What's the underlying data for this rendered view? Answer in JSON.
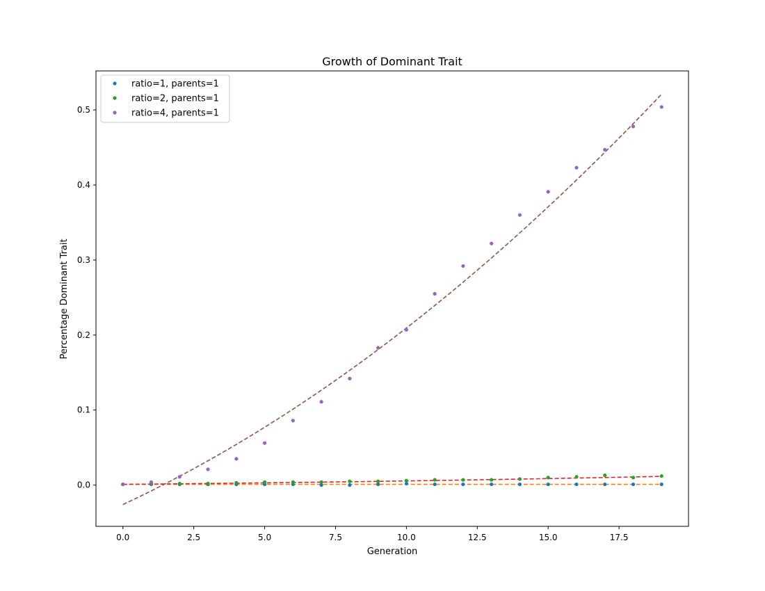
{
  "chart_data": {
    "type": "scatter",
    "title": "Growth of Dominant Trait",
    "xlabel": "Generation",
    "ylabel": "Percentage Dominant Trait",
    "xlim": [
      -0.95,
      19.95
    ],
    "ylim": [
      -0.055,
      0.552
    ],
    "xticks": [
      0.0,
      2.5,
      5.0,
      7.5,
      10.0,
      12.5,
      15.0,
      17.5
    ],
    "xtick_labels": [
      "0.0",
      "2.5",
      "5.0",
      "7.5",
      "10.0",
      "12.5",
      "15.0",
      "17.5"
    ],
    "yticks": [
      0.0,
      0.1,
      0.2,
      0.3,
      0.4,
      0.5
    ],
    "ytick_labels": [
      "0.0",
      "0.1",
      "0.2",
      "0.3",
      "0.4",
      "0.5"
    ],
    "grid": false,
    "legend_position": "upper-left",
    "x": [
      0,
      1,
      2,
      3,
      4,
      5,
      6,
      7,
      8,
      9,
      10,
      11,
      12,
      13,
      14,
      15,
      16,
      17,
      18,
      19
    ],
    "series": [
      {
        "name": "ratio=1, parents=1",
        "color": "#1f77b4",
        "values": [
          0.001,
          0.001,
          0.001,
          0.001,
          0.001,
          0.001,
          0.001,
          0.0,
          0.0,
          0.001,
          0.002,
          0.001,
          0.001,
          0.001,
          0.001,
          0.001,
          0.001,
          0.001,
          0.001,
          0.001
        ]
      },
      {
        "name": "ratio=2, parents=1",
        "color": "#2ca02c",
        "values": [
          0.001,
          0.002,
          0.002,
          0.002,
          0.003,
          0.004,
          0.004,
          0.004,
          0.005,
          0.005,
          0.006,
          0.007,
          0.007,
          0.007,
          0.008,
          0.01,
          0.011,
          0.013,
          0.01,
          0.012
        ]
      },
      {
        "name": "ratio=4, parents=1",
        "color": "#9467bd",
        "values": [
          0.001,
          0.004,
          0.011,
          0.021,
          0.035,
          0.056,
          0.086,
          0.111,
          0.142,
          0.183,
          0.207,
          0.255,
          0.292,
          0.322,
          0.36,
          0.391,
          0.423,
          0.447,
          0.478,
          0.504
        ]
      }
    ],
    "fit_lines": [
      {
        "color": "#ff7f0e",
        "dash": true,
        "poly_coeffs": [
          0.0,
          0.0,
          0.001
        ]
      },
      {
        "color": "#d62728",
        "dash": true,
        "poly_coeffs": [
          1.15e-05,
          0.0003385,
          0.001
        ]
      },
      {
        "color": "#8c564b",
        "dash": true,
        "poly_coeffs": [
          0.0005836,
          0.0177,
          -0.026
        ]
      }
    ]
  }
}
